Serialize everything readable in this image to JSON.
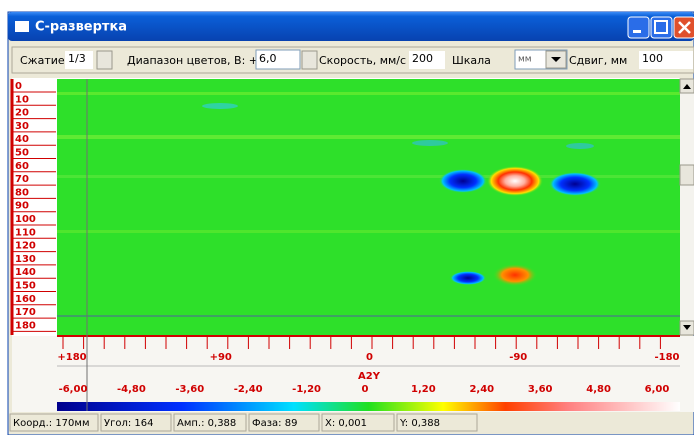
{
  "window": {
    "title": "С-развертка"
  },
  "toolbar": {
    "compression": {
      "label": "Сжатие",
      "value": "1/3"
    },
    "color_range": {
      "label": "Диапазон цветов, В: +/-",
      "value": "6,0"
    },
    "speed": {
      "label": "Скорость, мм/с",
      "value": "200"
    },
    "scale": {
      "label": "Шкала",
      "value": "мм"
    },
    "shift": {
      "label": "Сдвиг, мм",
      "value": "100"
    }
  },
  "depth_ruler": [
    "0",
    "10",
    "20",
    "30",
    "40",
    "50",
    "60",
    "70",
    "80",
    "90",
    "100",
    "110",
    "120",
    "130",
    "140",
    "150",
    "160",
    "170",
    "180"
  ],
  "angle_ruler": [
    "+180",
    "+90",
    "0",
    "-90",
    "-180"
  ],
  "channel": "A2Y",
  "color_scale": [
    "-6,00",
    "-4,80",
    "-3,60",
    "-2,40",
    "-1,20",
    "0",
    "1,20",
    "2,40",
    "3,60",
    "4,80",
    "6,00"
  ],
  "status": [
    "Коорд.: 170мм",
    "Угол: 164",
    "Амп.: 0,388",
    "Фаза: 89",
    "X: 0,001",
    "Y: 0,388"
  ]
}
